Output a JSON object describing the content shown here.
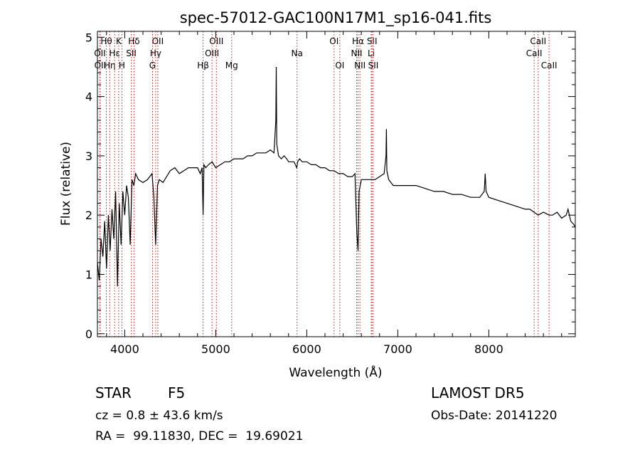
{
  "chart_data": {
    "type": "line",
    "title": "spec-57012-GAC100N17M1_sp16-041.fits",
    "xlabel": "Wavelength (Å)",
    "ylabel": "Flux (relative)",
    "xlim": [
      3700,
      8950
    ],
    "ylim": [
      -0.05,
      5.1
    ],
    "xticks": [
      4000,
      5000,
      6000,
      7000,
      8000
    ],
    "yticks": [
      0,
      1,
      2,
      3,
      4,
      5
    ],
    "grid": false,
    "series": [
      {
        "x": [
          3700,
          3720,
          3740,
          3760,
          3780,
          3800,
          3820,
          3840,
          3860,
          3880,
          3900,
          3920,
          3940,
          3960,
          3980,
          4000,
          4020,
          4040,
          4060,
          4080,
          4100,
          4120,
          4150,
          4200,
          4250,
          4300,
          4320,
          4340,
          4360,
          4380,
          4420,
          4460,
          4500,
          4550,
          4600,
          4650,
          4700,
          4750,
          4800,
          4830,
          4850,
          4861,
          4870,
          4890,
          4920,
          4960,
          5000,
          5050,
          5100,
          5150,
          5200,
          5250,
          5300,
          5350,
          5400,
          5450,
          5500,
          5550,
          5600,
          5640,
          5660,
          5665,
          5670,
          5690,
          5720,
          5750,
          5780,
          5800,
          5830,
          5860,
          5890,
          5900,
          5920,
          5950,
          6000,
          6050,
          6100,
          6150,
          6200,
          6250,
          6300,
          6350,
          6400,
          6450,
          6500,
          6530,
          6550,
          6563,
          6575,
          6600,
          6650,
          6700,
          6750,
          6800,
          6850,
          6870,
          6875,
          6880,
          6900,
          6950,
          7000,
          7050,
          7100,
          7150,
          7200,
          7300,
          7400,
          7500,
          7600,
          7700,
          7800,
          7900,
          7950,
          7960,
          7970,
          8000,
          8100,
          8200,
          8300,
          8400,
          8450,
          8498,
          8542,
          8600,
          8662,
          8700,
          8750,
          8800,
          8850,
          8870,
          8900,
          8930,
          8950
        ],
        "values": [
          1.2,
          0.9,
          1.6,
          1.3,
          1.9,
          1.1,
          2.0,
          1.4,
          2.1,
          1.6,
          2.4,
          0.8,
          2.2,
          1.5,
          2.4,
          2.0,
          2.5,
          2.3,
          1.5,
          2.6,
          2.5,
          2.7,
          2.6,
          2.55,
          2.6,
          2.7,
          2.3,
          1.5,
          2.5,
          2.6,
          2.55,
          2.65,
          2.75,
          2.8,
          2.7,
          2.75,
          2.8,
          2.8,
          2.8,
          2.7,
          2.8,
          2.0,
          2.85,
          2.8,
          2.85,
          2.9,
          2.8,
          2.85,
          2.9,
          2.9,
          2.95,
          2.95,
          2.95,
          3.0,
          3.0,
          3.05,
          3.05,
          3.05,
          3.1,
          3.05,
          3.6,
          4.5,
          3.2,
          3.0,
          2.95,
          3.0,
          2.95,
          2.9,
          2.9,
          2.9,
          2.8,
          2.9,
          2.95,
          2.9,
          2.9,
          2.85,
          2.85,
          2.8,
          2.8,
          2.75,
          2.75,
          2.7,
          2.7,
          2.65,
          2.65,
          2.7,
          1.7,
          1.4,
          2.4,
          2.6,
          2.6,
          2.6,
          2.6,
          2.65,
          2.7,
          3.0,
          3.45,
          2.75,
          2.6,
          2.5,
          2.5,
          2.5,
          2.5,
          2.5,
          2.5,
          2.45,
          2.4,
          2.4,
          2.35,
          2.35,
          2.3,
          2.3,
          2.4,
          2.7,
          2.4,
          2.3,
          2.25,
          2.2,
          2.15,
          2.1,
          2.1,
          2.05,
          2.0,
          2.05,
          2.0,
          2.0,
          2.05,
          1.95,
          2.0,
          2.1,
          1.9,
          1.85,
          1.8
        ]
      }
    ],
    "lines": [
      {
        "label": "Hθ",
        "x": 3798,
        "row": 1
      },
      {
        "label": "OII",
        "x": 3727,
        "row": 2
      },
      {
        "label": "OII",
        "x": 3730,
        "row": 3
      },
      {
        "label": "Hη",
        "x": 3835,
        "row": 3
      },
      {
        "label": "K",
        "x": 3934,
        "row": 1
      },
      {
        "label": "Hε",
        "x": 3889,
        "row": 2
      },
      {
        "label": "H",
        "x": 3969,
        "row": 3
      },
      {
        "label": "Hδ",
        "x": 4102,
        "row": 1
      },
      {
        "label": "SII",
        "x": 4072,
        "row": 2
      },
      {
        "label": "OII",
        "x": 4363,
        "row": 1
      },
      {
        "label": "Hγ",
        "x": 4340,
        "row": 2
      },
      {
        "label": "G",
        "x": 4305,
        "row": 3
      },
      {
        "label": "Hβ",
        "x": 4861,
        "row": 3
      },
      {
        "label": "OIII",
        "x": 5007,
        "row": 1
      },
      {
        "label": "OIII",
        "x": 4959,
        "row": 2
      },
      {
        "label": "Mg",
        "x": 5175,
        "row": 3
      },
      {
        "label": "Na",
        "x": 5893,
        "row": 2
      },
      {
        "label": "OI",
        "x": 6300,
        "row": 1
      },
      {
        "label": "OI",
        "x": 6363,
        "row": 3
      },
      {
        "label": "Hα",
        "x": 6563,
        "row": 1
      },
      {
        "label": "NII",
        "x": 6548,
        "row": 2
      },
      {
        "label": "NII",
        "x": 6584,
        "row": 3
      },
      {
        "label": "SII",
        "x": 6717,
        "row": 1
      },
      {
        "label": "Li",
        "x": 6708,
        "row": 2
      },
      {
        "label": "SII",
        "x": 6731,
        "row": 3
      },
      {
        "label": "CaII",
        "x": 8542,
        "row": 1
      },
      {
        "label": "CaII",
        "x": 8498,
        "row": 2
      },
      {
        "label": "CaII",
        "x": 8662,
        "row": 3
      }
    ],
    "line_color": "#b02020",
    "spectrum_color": "#000000"
  },
  "info": {
    "class": "STAR",
    "subclass": "F5",
    "survey": "LAMOST DR5",
    "cz": "cz = 0.8 ± 43.6 km/s",
    "obs_date": "Obs-Date: 20141220",
    "coords": "RA =  99.11830, DEC =  19.69021"
  }
}
